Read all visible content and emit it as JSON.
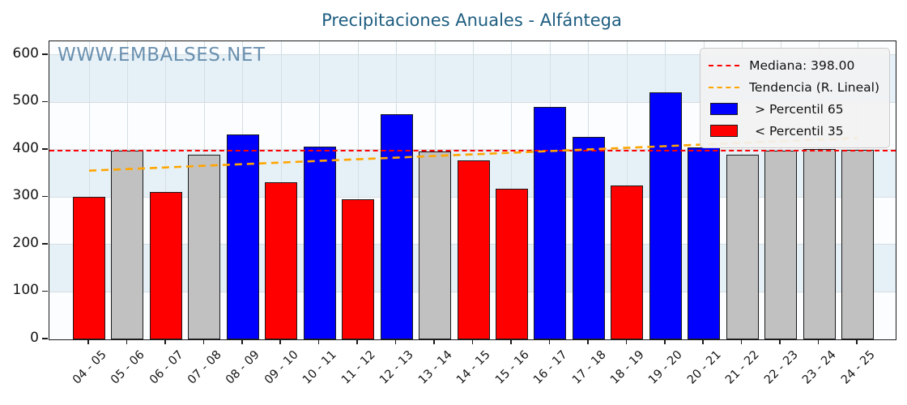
{
  "title": "Precipitaciones Anuales - Alfántega",
  "watermark": "WWW.EMBALSES.NET",
  "colors": {
    "above_percentile": "#0000ff",
    "below_percentile": "#ff0000",
    "mid_percentile": "#c1c1c1",
    "median_line": "#ff0000",
    "trend_line": "#ffa500",
    "title_text": "#1d5d80",
    "watermark_text": "rgba(62,110,150,0.75)",
    "band_blue": "#e6f1f7",
    "band_white": "#fbfdfe",
    "gridline": "#d5dee4"
  },
  "chart_data": {
    "type": "bar",
    "title": "Precipitaciones Anuales - Alfántega",
    "xlabel": "",
    "ylabel": "",
    "categories": [
      "04 - 05",
      "05 - 06",
      "06 - 07",
      "07 - 08",
      "08 - 09",
      "09 - 10",
      "10 - 11",
      "11 - 12",
      "12 - 13",
      "13 - 14",
      "14 - 15",
      "15 - 16",
      "16 - 17",
      "17 - 18",
      "18 - 19",
      "19 - 20",
      "20 - 21",
      "21 - 22",
      "22 - 23",
      "23 - 24",
      "24 - 25"
    ],
    "values": [
      300,
      398,
      311,
      389,
      433,
      331,
      406,
      295,
      476,
      397,
      378,
      318,
      491,
      427,
      325,
      522,
      405,
      390,
      398,
      402,
      400
    ],
    "bar_classes": [
      "below",
      "mid",
      "below",
      "mid",
      "above",
      "below",
      "above",
      "below",
      "above",
      "mid",
      "below",
      "below",
      "above",
      "above",
      "below",
      "above",
      "above",
      "mid",
      "mid",
      "mid",
      "mid"
    ],
    "median_value": 398.0,
    "trend": {
      "start_value": 356,
      "end_value": 425
    },
    "yticks": [
      0,
      100,
      200,
      300,
      400,
      500,
      600
    ],
    "ylim": [
      0,
      629
    ],
    "grid": true,
    "legend_position": "upper right",
    "legend": {
      "median": "Mediana: 398.00",
      "trend": "Tendencia (R. Lineal)",
      "above": "> Percentil 65",
      "below": "< Percentil 35"
    }
  }
}
